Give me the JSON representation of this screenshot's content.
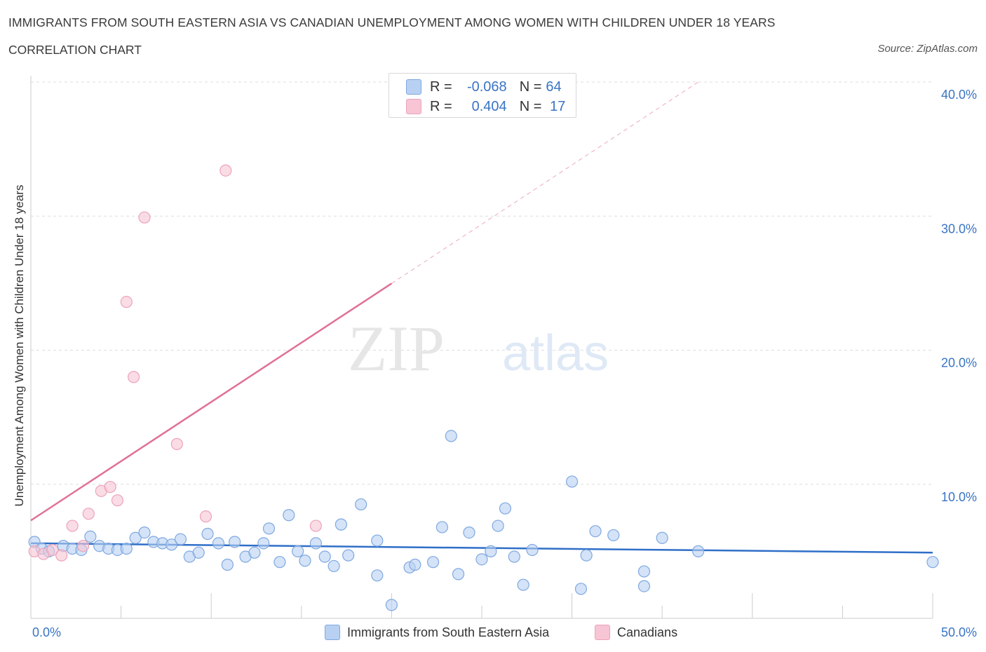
{
  "header": {
    "title": "IMMIGRANTS FROM SOUTH EASTERN ASIA VS CANADIAN UNEMPLOYMENT AMONG WOMEN WITH CHILDREN UNDER 18 YEARS",
    "subtitle": "CORRELATION CHART",
    "source": "Source: ZipAtlas.com"
  },
  "watermark": {
    "zip": "ZIP",
    "atlas": "atlas"
  },
  "legend": {
    "rows": [
      {
        "r_label": "R =",
        "r_value": "-0.068",
        "n_label": "N =",
        "n_value": "64"
      },
      {
        "r_label": "R =",
        "r_value": "0.404",
        "n_label": "N =",
        "n_value": "17"
      }
    ]
  },
  "colors": {
    "blue_fill": "#b8d1f2",
    "blue_stroke": "#7fa8e0",
    "blue_line": "#2f6fc8",
    "pink_fill": "#f7c5d4",
    "pink_stroke": "#eca3ba",
    "pink_line": "#e07096",
    "axis_label": "#3a74c4",
    "grid": "#dddddd"
  },
  "chart_data": {
    "type": "scatter",
    "title": "IMMIGRANTS FROM SOUTH EASTERN ASIA VS CANADIAN UNEMPLOYMENT AMONG WOMEN WITH CHILDREN UNDER 18 YEARS",
    "xlabel": "",
    "ylabel": "Unemployment Among Women with Children Under 18 years",
    "xlim": [
      0,
      50
    ],
    "ylim": [
      0,
      40
    ],
    "x_tick_labels": [
      "0.0%",
      "50.0%"
    ],
    "y_ticks": [
      10,
      20,
      30,
      40
    ],
    "y_tick_labels": [
      "10.0%",
      "20.0%",
      "30.0%",
      "40.0%"
    ],
    "grid": true,
    "legend_position": "bottom",
    "series": [
      {
        "name": "Immigrants from South Eastern Asia",
        "color": "#b8d1f2",
        "r": -0.068,
        "n": 64,
        "trend": {
          "x0": 0,
          "y0": 5.6,
          "x1": 50,
          "y1": 4.9,
          "dashed_from": null
        },
        "points": [
          [
            0.2,
            5.7
          ],
          [
            0.6,
            5.2
          ],
          [
            1.0,
            5.0
          ],
          [
            1.8,
            5.4
          ],
          [
            2.3,
            5.2
          ],
          [
            2.8,
            5.1
          ],
          [
            3.3,
            6.1
          ],
          [
            3.8,
            5.4
          ],
          [
            4.3,
            5.2
          ],
          [
            4.8,
            5.1
          ],
          [
            5.3,
            5.2
          ],
          [
            5.8,
            6.0
          ],
          [
            6.3,
            6.4
          ],
          [
            6.8,
            5.7
          ],
          [
            7.3,
            5.6
          ],
          [
            7.8,
            5.5
          ],
          [
            8.3,
            5.9
          ],
          [
            8.8,
            4.6
          ],
          [
            9.3,
            4.9
          ],
          [
            9.8,
            6.3
          ],
          [
            10.4,
            5.6
          ],
          [
            10.9,
            4.0
          ],
          [
            11.3,
            5.7
          ],
          [
            11.9,
            4.6
          ],
          [
            12.4,
            4.9
          ],
          [
            12.9,
            5.6
          ],
          [
            13.2,
            6.7
          ],
          [
            13.8,
            4.2
          ],
          [
            14.3,
            7.7
          ],
          [
            14.8,
            5.0
          ],
          [
            15.2,
            4.3
          ],
          [
            15.8,
            5.6
          ],
          [
            16.3,
            4.6
          ],
          [
            16.8,
            3.9
          ],
          [
            17.2,
            7.0
          ],
          [
            17.6,
            4.7
          ],
          [
            18.3,
            8.5
          ],
          [
            19.2,
            5.8
          ],
          [
            19.2,
            3.2
          ],
          [
            20.0,
            1.0
          ],
          [
            21.0,
            3.8
          ],
          [
            21.3,
            4.0
          ],
          [
            22.3,
            4.2
          ],
          [
            22.8,
            6.8
          ],
          [
            23.3,
            13.6
          ],
          [
            23.7,
            3.3
          ],
          [
            24.3,
            6.4
          ],
          [
            25.0,
            4.4
          ],
          [
            25.5,
            5.0
          ],
          [
            25.9,
            6.9
          ],
          [
            26.3,
            8.2
          ],
          [
            26.8,
            4.6
          ],
          [
            27.3,
            2.5
          ],
          [
            27.8,
            5.1
          ],
          [
            30.0,
            10.2
          ],
          [
            30.5,
            2.2
          ],
          [
            30.8,
            4.7
          ],
          [
            31.3,
            6.5
          ],
          [
            32.3,
            6.2
          ],
          [
            34.0,
            3.5
          ],
          [
            34.0,
            2.4
          ],
          [
            35.0,
            6.0
          ],
          [
            37.0,
            5.0
          ],
          [
            50.0,
            4.2
          ]
        ]
      },
      {
        "name": "Canadians",
        "color": "#f7c5d4",
        "r": 0.404,
        "n": 17,
        "trend": {
          "x0": 0,
          "y0": 7.3,
          "x1": 37,
          "y1": 40.0,
          "dashed_from": 20
        },
        "points": [
          [
            0.2,
            5.0
          ],
          [
            0.7,
            4.8
          ],
          [
            1.2,
            5.1
          ],
          [
            1.7,
            4.7
          ],
          [
            2.3,
            6.9
          ],
          [
            2.9,
            5.4
          ],
          [
            3.2,
            7.8
          ],
          [
            3.9,
            9.5
          ],
          [
            4.4,
            9.8
          ],
          [
            4.8,
            8.8
          ],
          [
            5.3,
            23.6
          ],
          [
            5.7,
            18.0
          ],
          [
            6.3,
            29.9
          ],
          [
            8.1,
            13.0
          ],
          [
            9.7,
            7.6
          ],
          [
            10.8,
            33.4
          ],
          [
            15.8,
            6.9
          ]
        ]
      }
    ]
  }
}
